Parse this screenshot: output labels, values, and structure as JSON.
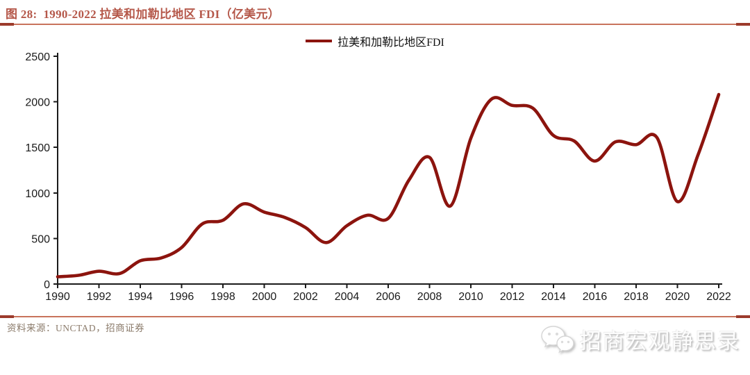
{
  "title": "图 28:  1990-2022 拉美和加勒比地区 FDI（亿美元）",
  "legend": {
    "label": "拉美和加勒比地区FDI"
  },
  "footer": {
    "source": "资料来源：UNCTAD，招商证券"
  },
  "watermark": {
    "icon": "wechat-icon",
    "text": "招商宏观静思录"
  },
  "colors": {
    "line": "#8C140E",
    "title_text": "#B5584A",
    "rule": "#C8735C",
    "rule_cap": "#9C3B2C",
    "source_text": "#8B7B6B",
    "axis": "#1a1a1a"
  },
  "chart_data": {
    "type": "line",
    "title": "1990-2022 拉美和加勒比地区 FDI（亿美元）",
    "xlabel": "",
    "ylabel": "",
    "x": [
      1990,
      1991,
      1992,
      1993,
      1994,
      1995,
      1996,
      1997,
      1998,
      1999,
      2000,
      2001,
      2002,
      2003,
      2004,
      2005,
      2006,
      2007,
      2008,
      2009,
      2010,
      2011,
      2012,
      2013,
      2014,
      2015,
      2016,
      2017,
      2018,
      2019,
      2020,
      2021,
      2022
    ],
    "series": [
      {
        "name": "拉美和加勒比地区FDI",
        "color": "#8C140E",
        "values": [
          80,
          95,
          140,
          115,
          255,
          285,
          400,
          660,
          700,
          880,
          790,
          730,
          620,
          455,
          640,
          755,
          720,
          1140,
          1390,
          855,
          1600,
          2030,
          1960,
          1930,
          1630,
          1570,
          1350,
          1560,
          1530,
          1610,
          905,
          1420,
          2080
        ]
      }
    ],
    "ylim": [
      0,
      2500
    ],
    "yticks": [
      0,
      500,
      1000,
      1500,
      2000,
      2500
    ],
    "xticks": [
      1990,
      1992,
      1994,
      1996,
      1998,
      2000,
      2002,
      2004,
      2006,
      2008,
      2010,
      2012,
      2014,
      2016,
      2018,
      2020,
      2022
    ],
    "grid": false,
    "legend_position": "top-center"
  }
}
